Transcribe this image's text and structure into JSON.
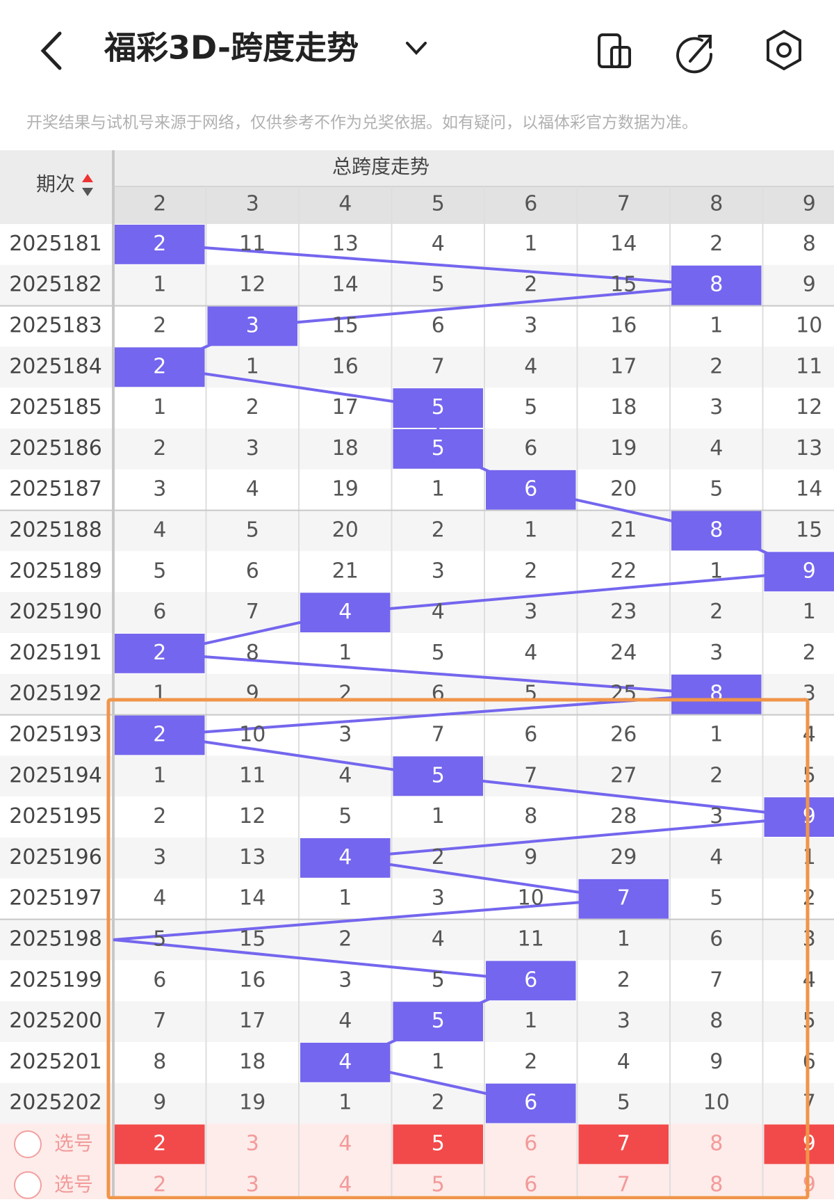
{
  "header": {
    "title": "福彩3D-跨度走势",
    "notice": "开奖结果与试机号来源于网络，仅供参考不作为兑奖依据。如有疑问，以福体彩官方数据为准。"
  },
  "table": {
    "period_header": "期次",
    "group_header": "总跨度走势",
    "columns": [
      2,
      3,
      4,
      5,
      6,
      7,
      8,
      9
    ],
    "rows": [
      {
        "period": "2025181",
        "cells": [
          2,
          11,
          13,
          4,
          1,
          14,
          2,
          8
        ],
        "highlight": 0
      },
      {
        "period": "2025182",
        "cells": [
          1,
          12,
          14,
          5,
          2,
          15,
          8,
          9
        ],
        "highlight": 6
      },
      {
        "period": "2025183",
        "cells": [
          2,
          3,
          15,
          6,
          3,
          16,
          1,
          10
        ],
        "highlight": 1
      },
      {
        "period": "2025184",
        "cells": [
          2,
          1,
          16,
          7,
          4,
          17,
          2,
          11
        ],
        "highlight": 0
      },
      {
        "period": "2025185",
        "cells": [
          1,
          2,
          17,
          5,
          5,
          18,
          3,
          12
        ],
        "highlight": 3
      },
      {
        "period": "2025186",
        "cells": [
          2,
          3,
          18,
          5,
          6,
          19,
          4,
          13
        ],
        "highlight": 3
      },
      {
        "period": "2025187",
        "cells": [
          3,
          4,
          19,
          1,
          6,
          20,
          5,
          14
        ],
        "highlight": 4
      },
      {
        "period": "2025188",
        "cells": [
          4,
          5,
          20,
          2,
          1,
          21,
          8,
          15
        ],
        "highlight": 6
      },
      {
        "period": "2025189",
        "cells": [
          5,
          6,
          21,
          3,
          2,
          22,
          1,
          9
        ],
        "highlight": 7
      },
      {
        "period": "2025190",
        "cells": [
          6,
          7,
          4,
          4,
          3,
          23,
          2,
          1
        ],
        "highlight": 2
      },
      {
        "period": "2025191",
        "cells": [
          2,
          8,
          1,
          5,
          4,
          24,
          3,
          2
        ],
        "highlight": 0
      },
      {
        "period": "2025192",
        "cells": [
          1,
          9,
          2,
          6,
          5,
          25,
          8,
          3
        ],
        "highlight": 6
      },
      {
        "period": "2025193",
        "cells": [
          2,
          10,
          3,
          7,
          6,
          26,
          1,
          4
        ],
        "highlight": 0
      },
      {
        "period": "2025194",
        "cells": [
          1,
          11,
          4,
          5,
          7,
          27,
          2,
          5
        ],
        "highlight": 3
      },
      {
        "period": "2025195",
        "cells": [
          2,
          12,
          5,
          1,
          8,
          28,
          3,
          9
        ],
        "highlight": 7
      },
      {
        "period": "2025196",
        "cells": [
          3,
          13,
          4,
          2,
          9,
          29,
          4,
          1
        ],
        "highlight": 2
      },
      {
        "period": "2025197",
        "cells": [
          4,
          14,
          1,
          3,
          10,
          7,
          5,
          2
        ],
        "highlight": 5
      },
      {
        "period": "2025198",
        "cells": [
          5,
          15,
          2,
          4,
          11,
          1,
          6,
          3
        ],
        "highlight": null
      },
      {
        "period": "2025199",
        "cells": [
          6,
          16,
          3,
          5,
          6,
          2,
          7,
          4
        ],
        "highlight": 4
      },
      {
        "period": "2025200",
        "cells": [
          7,
          17,
          4,
          5,
          1,
          3,
          8,
          5
        ],
        "highlight": 3
      },
      {
        "period": "2025201",
        "cells": [
          8,
          18,
          4,
          1,
          2,
          4,
          9,
          6
        ],
        "highlight": 2
      },
      {
        "period": "2025202",
        "cells": [
          9,
          19,
          1,
          2,
          6,
          5,
          10,
          7
        ],
        "highlight": 4
      }
    ],
    "select_rows": [
      {
        "label": "选号",
        "cells": [
          2,
          3,
          4,
          5,
          6,
          7,
          8,
          9
        ],
        "filled": [
          0,
          3,
          5,
          7
        ]
      },
      {
        "label": "选号",
        "cells": [
          2,
          3,
          4,
          5,
          6,
          7,
          8,
          9
        ],
        "filled": []
      }
    ]
  }
}
